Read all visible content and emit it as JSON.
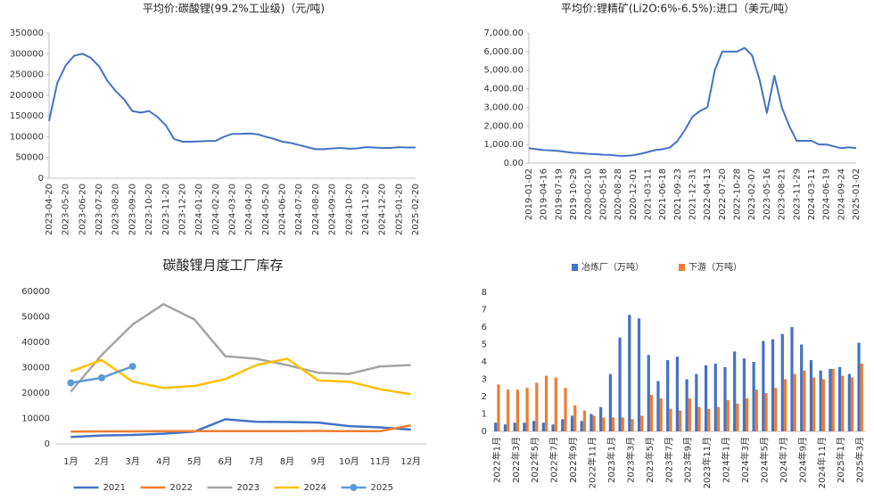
{
  "chart_data": [
    {
      "type": "line",
      "title": "平均价:碳酸锂(99.2%工业级)（元/吨)",
      "categories": [
        "2023-04-20",
        null,
        "2023-05-20",
        null,
        "2023-06-20",
        null,
        "2023-07-20",
        null,
        "2023-08-20",
        null,
        "2023-09-20",
        null,
        "2023-10-20",
        null,
        "2023-11-20",
        null,
        "2023-12-20",
        null,
        "2024-01-20",
        null,
        "2024-02-20",
        null,
        "2024-03-20",
        null,
        "2024-04-20",
        null,
        "2024-05-20",
        null,
        "2024-06-20",
        null,
        "2024-07-20",
        null,
        "2024-08-20",
        null,
        "2024-09-20",
        null,
        "2024-10-20",
        null,
        "2024-11-20",
        null,
        "2024-12-20",
        null,
        "2025-01-20",
        null,
        "2025-02-20"
      ],
      "values": [
        138000,
        230000,
        272000,
        295000,
        300000,
        290000,
        270000,
        235000,
        210000,
        190000,
        162000,
        158000,
        162000,
        148000,
        128000,
        95000,
        88000,
        88000,
        89000,
        90000,
        90000,
        100000,
        107000,
        107000,
        108000,
        106000,
        100000,
        95000,
        88000,
        85000,
        80000,
        75000,
        70000,
        70000,
        72000,
        73000,
        71000,
        72000,
        75000,
        74000,
        73000,
        73000,
        75000,
        74000,
        74000
      ],
      "color": "#4472c4",
      "ylim": [
        0,
        350000
      ],
      "yticks": [
        0,
        50000,
        100000,
        150000,
        200000,
        250000,
        300000,
        350000
      ],
      "grid": false
    },
    {
      "type": "line",
      "title": "平均价:锂精矿(Li2O:6%-6.5%):进口（美元/吨）",
      "categories": [
        "2019-01-02",
        null,
        "2019-04-16",
        null,
        "2019-07-19",
        null,
        "2019-10-29",
        null,
        "2020-02-10",
        null,
        "2020-05-18",
        null,
        "2020-08-28",
        null,
        "2020-12-01",
        null,
        "2021-03-11",
        null,
        "2021-06-18",
        null,
        "2021-09-23",
        null,
        "2021-12-31",
        null,
        "2022-04-13",
        null,
        "2022-07-20",
        null,
        "2022-10-28",
        null,
        "2023-02-07",
        null,
        "2023-05-16",
        null,
        "2023-08-21",
        null,
        "2023-11-29",
        null,
        "2024-03-11",
        null,
        "2024-06-19",
        null,
        "2024-09-24",
        null,
        "2025-01-02"
      ],
      "values": [
        800,
        750,
        700,
        680,
        650,
        600,
        550,
        530,
        500,
        480,
        450,
        440,
        400,
        390,
        420,
        500,
        600,
        700,
        750,
        850,
        1200,
        1800,
        2500,
        2800,
        3000,
        5000,
        6000,
        6000,
        6000,
        6200,
        5800,
        4500,
        2700,
        4700,
        3000,
        2000,
        1200,
        1200,
        1200,
        1000,
        1000,
        900,
        800,
        850,
        800
      ],
      "color": "#4472c4",
      "ylim": [
        0,
        7000
      ],
      "yticks": [
        {
          "value": 0,
          "label": "0.00"
        },
        {
          "value": 1000,
          "label": "1,000.00"
        },
        {
          "value": 2000,
          "label": "2,000.00"
        },
        {
          "value": 3000,
          "label": "3,000.00"
        },
        {
          "value": 4000,
          "label": "4,000.00"
        },
        {
          "value": 5000,
          "label": "5,000.00"
        },
        {
          "value": 6000,
          "label": "6,000.00"
        },
        {
          "value": 7000,
          "label": "7,000.00"
        }
      ],
      "grid": false
    },
    {
      "type": "line",
      "title": "碳酸锂月度工厂库存",
      "categories": [
        "1月",
        "2月",
        "3月",
        "4月",
        "5月",
        "6月",
        "7月",
        "8月",
        "9月",
        "10月",
        "11月",
        "12月"
      ],
      "series": [
        {
          "name": "2021",
          "color": "#4472c4",
          "values": [
            2700,
            3300,
            3500,
            4000,
            4800,
            9700,
            8700,
            8600,
            8400,
            7000,
            6500,
            5600
          ]
        },
        {
          "name": "2022",
          "color": "#ed7d31",
          "values": [
            4800,
            4900,
            4900,
            5000,
            5000,
            5000,
            5000,
            5000,
            5100,
            5000,
            5000,
            7300
          ]
        },
        {
          "name": "2023",
          "color": "#a5a5a5",
          "values": [
            20500,
            35000,
            47000,
            55000,
            49000,
            34500,
            33500,
            31000,
            28000,
            27500,
            30500,
            31000
          ]
        },
        {
          "name": "2024",
          "color": "#ffc000",
          "values": [
            28500,
            33000,
            24500,
            22000,
            22800,
            25500,
            31000,
            33500,
            25000,
            24500,
            21500,
            19500
          ]
        },
        {
          "name": "2025",
          "color": "#5b9bd5",
          "markers": true,
          "values": [
            24000,
            26000,
            30500,
            null,
            null,
            null,
            null,
            null,
            null,
            null,
            null,
            null
          ]
        }
      ],
      "ylim": [
        0,
        60000
      ],
      "yticks": [
        0,
        10000,
        20000,
        30000,
        40000,
        50000,
        60000
      ],
      "grid": false,
      "legend": "bottom"
    },
    {
      "type": "bar",
      "categories": [
        "2022年1月",
        null,
        "2022年3月",
        null,
        "2022年5月",
        null,
        "2022年7月",
        null,
        "2022年9月",
        null,
        "2022年11月",
        null,
        "2023年1月",
        null,
        "2023年3月",
        null,
        "2023年5月",
        null,
        "2023年7月",
        null,
        "2023年9月",
        null,
        "2023年11月",
        null,
        "2024年1月",
        null,
        "2024年3月",
        null,
        "2024年5月",
        null,
        "2024年7月",
        null,
        "2024年9月",
        null,
        "2024年11月",
        null,
        "2025年1月",
        null,
        "2025年3月"
      ],
      "series": [
        {
          "name": "冶炼厂（万吨）",
          "color": "#4472c4",
          "values": [
            0.5,
            0.4,
            0.5,
            0.5,
            0.6,
            0.5,
            0.4,
            0.7,
            0.9,
            0.6,
            1.0,
            1.4,
            3.3,
            5.4,
            6.7,
            6.5,
            4.4,
            2.9,
            4.1,
            4.3,
            3.0,
            3.3,
            3.8,
            3.9,
            3.7,
            4.6,
            4.2,
            4.0,
            5.2,
            5.3,
            5.6,
            6.0,
            5.0,
            4.1,
            3.5,
            3.6,
            3.7,
            3.3,
            5.1
          ]
        },
        {
          "name": "下游（万吨）",
          "color": "#ed7d31",
          "values": [
            2.7,
            2.4,
            2.4,
            2.5,
            2.8,
            3.2,
            3.1,
            2.5,
            1.5,
            1.2,
            0.9,
            0.8,
            0.8,
            0.8,
            0.7,
            0.9,
            2.1,
            1.9,
            1.3,
            1.2,
            1.9,
            1.4,
            1.3,
            1.4,
            1.8,
            1.6,
            1.9,
            2.4,
            2.2,
            2.5,
            3.0,
            3.3,
            3.5,
            3.1,
            3.0,
            3.6,
            3.2,
            3.1,
            3.9
          ]
        }
      ],
      "ylim": [
        0,
        8
      ],
      "yticks": [
        0,
        1,
        2,
        3,
        4,
        5,
        6,
        7,
        8
      ],
      "grid": false,
      "legend": "top"
    }
  ]
}
